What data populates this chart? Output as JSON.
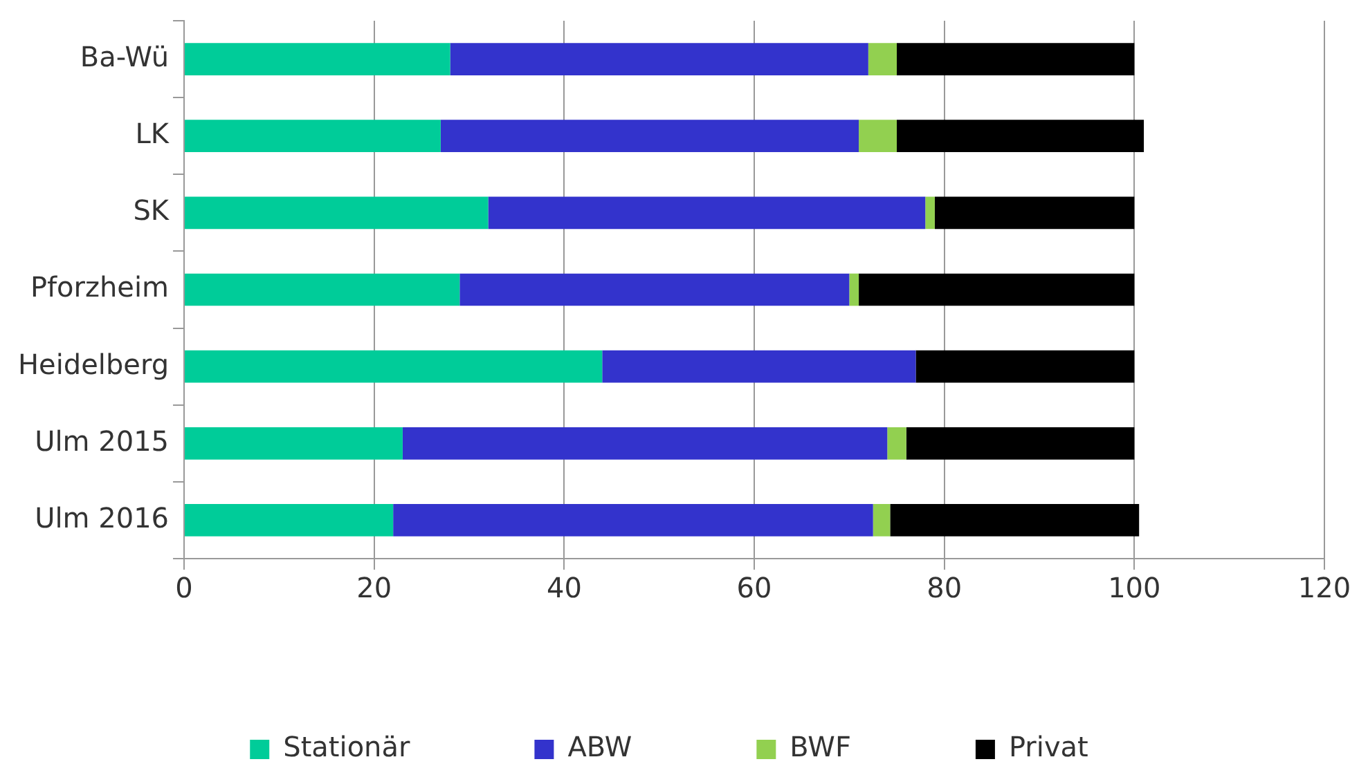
{
  "chart_data": {
    "type": "bar",
    "orientation": "horizontal",
    "stacked": true,
    "categories": [
      "Ba-Wü",
      "LK",
      "SK",
      "Pforzheim",
      "Heidelberg",
      "Ulm 2015",
      "Ulm 2016"
    ],
    "series": [
      {
        "name": "Stationär",
        "color": "#00cc99",
        "values": [
          28,
          27,
          32,
          29,
          44,
          23,
          22
        ]
      },
      {
        "name": "ABW",
        "color": "#3333cc",
        "values": [
          44,
          44,
          46,
          41,
          33,
          51,
          50.5
        ]
      },
      {
        "name": "BWF",
        "color": "#92d050",
        "values": [
          3,
          4,
          1,
          1,
          0,
          2,
          1.8
        ]
      },
      {
        "name": "Privat",
        "color": "#000000",
        "values": [
          25,
          26,
          21,
          29,
          23,
          24,
          26.2
        ]
      }
    ],
    "xlim": [
      0,
      120
    ],
    "xticks": [
      0,
      20,
      40,
      60,
      80,
      100,
      120
    ],
    "grid": "x",
    "legend": "bottom"
  }
}
